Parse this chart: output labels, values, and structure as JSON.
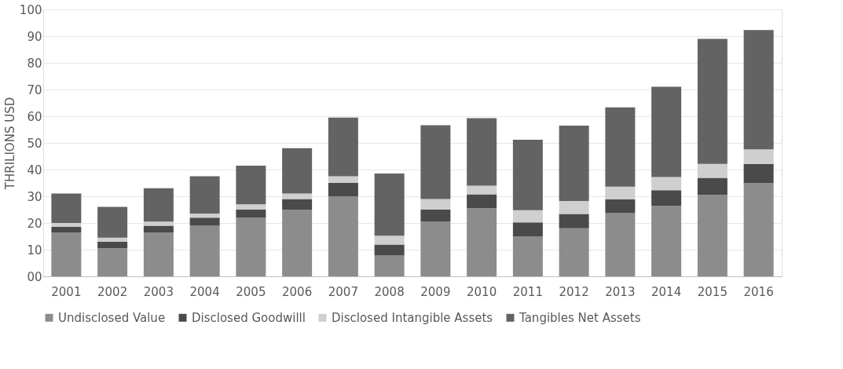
{
  "chart_data": {
    "type": "bar",
    "stacked": true,
    "ylabel": "THRILIONS USD",
    "categories": [
      "2001",
      "2002",
      "2003",
      "2004",
      "2005",
      "2006",
      "2007",
      "2008",
      "2009",
      "2010",
      "2011",
      "2012",
      "2013",
      "2014",
      "2015",
      "2016"
    ],
    "series": [
      {
        "name": "Undisclosed Value",
        "color": "#8c8c8c",
        "values": [
          16.5,
          10.5,
          16.5,
          19,
          22,
          25,
          30,
          7.8,
          20.6,
          25.5,
          15,
          18,
          23.7,
          26.4,
          30.5,
          34.9
        ]
      },
      {
        "name": "Disclosed Goodwilll",
        "color": "#4a4a4a",
        "values": [
          2,
          2.5,
          2.5,
          3,
          3,
          4,
          5,
          4.1,
          4.5,
          5.2,
          5.2,
          5.4,
          5.2,
          5.9,
          6.4,
          7.2
        ]
      },
      {
        "name": "Disclosed Intangible Assets",
        "color": "#cfcfcf",
        "values": [
          1.5,
          1.5,
          1.5,
          1.5,
          2,
          2,
          2.5,
          3.3,
          3.9,
          3.3,
          4.6,
          4.8,
          4.7,
          4.9,
          5.2,
          5.5
        ]
      },
      {
        "name": "Tangibles Net Assets",
        "color": "#636363",
        "values": [
          11,
          11.5,
          12.5,
          14,
          14.5,
          17,
          22,
          23.3,
          27.6,
          25.3,
          26.4,
          28.3,
          29.7,
          33.8,
          46.9,
          44.7
        ]
      }
    ],
    "ylim": [
      0,
      100
    ],
    "yticks": [
      {
        "value": 0,
        "label": "00"
      },
      10,
      20,
      30,
      40,
      50,
      60,
      70,
      80,
      90,
      100
    ],
    "grid": "y",
    "legend": "bottom"
  }
}
